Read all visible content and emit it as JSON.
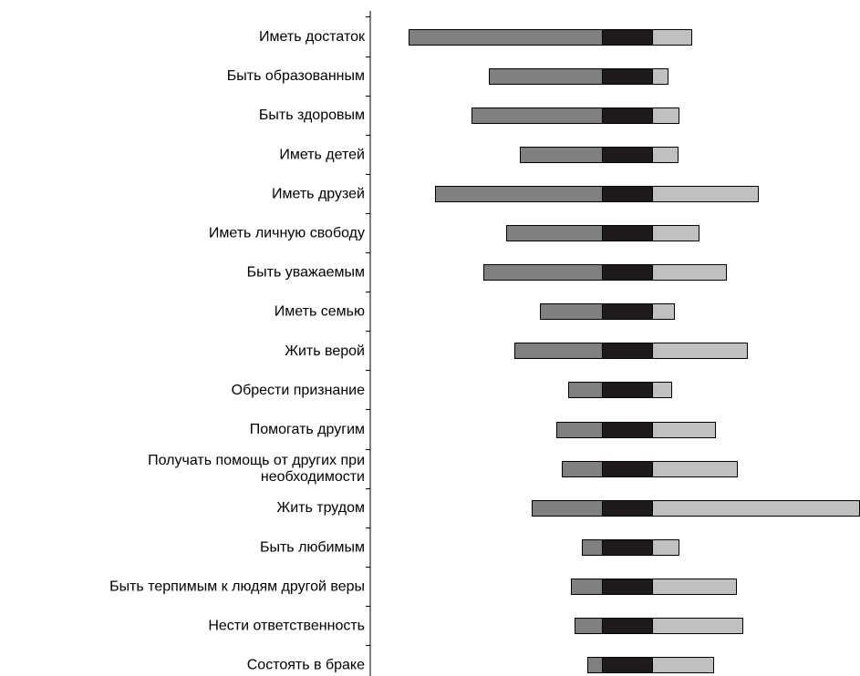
{
  "chart_data": {
    "type": "bar",
    "stacked": true,
    "orientation": "horizontal",
    "title": "",
    "xlabel": "",
    "ylabel": "",
    "grid": false,
    "legend": "none",
    "categories": [
      [
        "Иметь достаток"
      ],
      [
        "Быть образованным"
      ],
      [
        "Быть здоровым"
      ],
      [
        "Иметь детей"
      ],
      [
        "Иметь друзей"
      ],
      [
        "Иметь личную свободу"
      ],
      [
        "Быть уважаемым"
      ],
      [
        "Иметь семью"
      ],
      [
        "Жить верой"
      ],
      [
        "Обрести признание"
      ],
      [
        "Помогать другим"
      ],
      [
        "Получать помощь от других при",
        "необходимости"
      ],
      [
        "Жить трудом"
      ],
      [
        "Быть любимым"
      ],
      [
        "Быть терпимым к людям другой веры"
      ],
      [
        "Нести ответственность"
      ],
      [
        "Состоять в браке"
      ]
    ],
    "series": [
      {
        "color": "#808080",
        "direction": "left",
        "values": [
          212,
          124,
          143,
          90,
          183,
          105,
          130,
          68,
          96,
          37,
          50,
          44,
          77,
          22,
          34,
          30,
          16
        ]
      },
      {
        "color": "#1f1b1b",
        "direction": "right",
        "values": [
          55,
          55,
          55,
          55,
          55,
          55,
          55,
          55,
          55,
          55,
          55,
          55,
          55,
          55,
          55,
          55,
          55
        ]
      },
      {
        "color": "#c0c0c0",
        "direction": "right",
        "values": [
          43,
          17,
          29,
          28,
          116,
          51,
          81,
          24,
          104,
          21,
          69,
          93,
          227,
          29,
          92,
          99,
          67
        ]
      }
    ]
  }
}
